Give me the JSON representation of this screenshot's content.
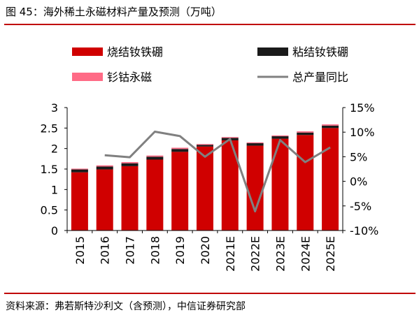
{
  "figure": {
    "title": "图 45：海外稀土永磁材料产量及预测（万吨）",
    "source": "资料来源：弗若斯特沙利文（含预测），中信证券研究部"
  },
  "colors": {
    "sintered": "#d00000",
    "bonded": "#1a1a1a",
    "samarium": "#ff6b86",
    "total_line": "#808080",
    "rule": "#c00000"
  },
  "chart_data": {
    "type": "bar",
    "stacked": true,
    "categories": [
      "2015",
      "2016",
      "2017",
      "2018",
      "2019",
      "2020",
      "2021E",
      "2022E",
      "2023E",
      "2024E",
      "2025E"
    ],
    "series": [
      {
        "name": "烧结钕铁硼",
        "type": "bar",
        "axis": "left",
        "values": [
          1.42,
          1.49,
          1.57,
          1.73,
          1.92,
          2.05,
          2.2,
          2.07,
          2.24,
          2.33,
          2.5
        ]
      },
      {
        "name": "粘结钕铁硼",
        "type": "bar",
        "axis": "left",
        "values": [
          0.07,
          0.07,
          0.07,
          0.07,
          0.07,
          0.04,
          0.06,
          0.06,
          0.06,
          0.06,
          0.06
        ]
      },
      {
        "name": "钐钴永磁",
        "type": "bar",
        "axis": "left",
        "values": [
          0.02,
          0.03,
          0.03,
          0.03,
          0.03,
          0.02,
          0.02,
          0.02,
          0.02,
          0.03,
          0.03
        ]
      },
      {
        "name": "总产量同比",
        "type": "line",
        "axis": "right",
        "values": [
          null,
          5.3,
          4.9,
          10.1,
          9.2,
          5.0,
          8.6,
          -6.1,
          8.4,
          3.9,
          6.9
        ]
      }
    ],
    "y_left": {
      "min": 0,
      "max": 3,
      "ticks": [
        "0",
        "0.5",
        "1",
        "1.5",
        "2",
        "2.5",
        "3"
      ]
    },
    "y_right": {
      "min": -10,
      "max": 15,
      "ticks": [
        "-10%",
        "-5%",
        "0%",
        "5%",
        "10%",
        "15%"
      ]
    },
    "legend": "top",
    "grid": false
  }
}
